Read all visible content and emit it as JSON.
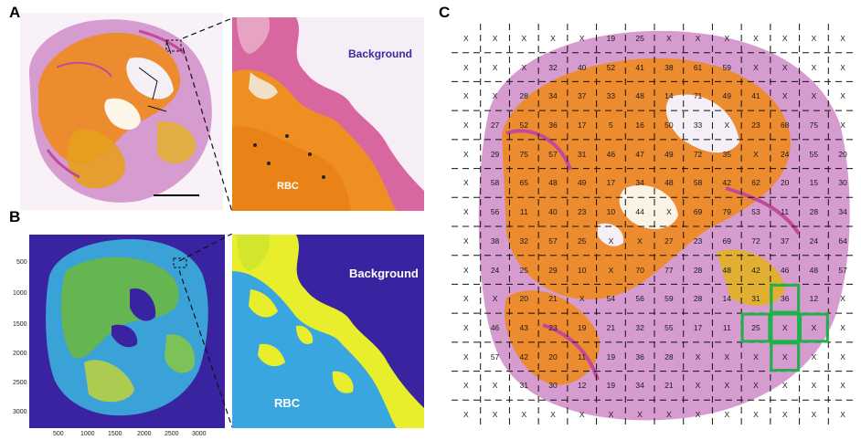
{
  "panels": {
    "a": {
      "label": "A",
      "zoom_label": "Background",
      "rbc_label": "RBC"
    },
    "b": {
      "label": "B",
      "zoom_label": "Background",
      "rbc_label": "RBC",
      "y_ticks": [
        "500",
        "1000",
        "1500",
        "2000",
        "2500",
        "3000"
      ],
      "x_ticks": [
        "500",
        "1000",
        "1500",
        "2000",
        "2500",
        "3000"
      ]
    },
    "c": {
      "label": "C",
      "grid": [
        [
          "X",
          "X",
          "X",
          "X",
          "X",
          "19",
          "25",
          "X",
          "X",
          "X",
          "X",
          "X",
          "X",
          "X"
        ],
        [
          "X",
          "X",
          "X",
          "32",
          "40",
          "52",
          "41",
          "38",
          "61",
          "59",
          "X",
          "X",
          "X",
          "X"
        ],
        [
          "X",
          "X",
          "28",
          "34",
          "37",
          "33",
          "48",
          "14",
          "71",
          "49",
          "41",
          "X",
          "X",
          "X"
        ],
        [
          "X",
          "27",
          "52",
          "36",
          "17",
          "5",
          "16",
          "50",
          "33",
          "X",
          "23",
          "68",
          "75",
          "X"
        ],
        [
          "X",
          "29",
          "75",
          "57",
          "31",
          "46",
          "47",
          "49",
          "72",
          "35",
          "X",
          "24",
          "55",
          "20"
        ],
        [
          "X",
          "58",
          "65",
          "48",
          "49",
          "17",
          "34",
          "48",
          "58",
          "42",
          "62",
          "20",
          "15",
          "30"
        ],
        [
          "X",
          "56",
          "11",
          "40",
          "23",
          "10",
          "44",
          "X",
          "69",
          "79",
          "53",
          "11",
          "28",
          "34"
        ],
        [
          "X",
          "38",
          "32",
          "57",
          "25",
          "X",
          "X",
          "27",
          "23",
          "69",
          "72",
          "37",
          "24",
          "64"
        ],
        [
          "X",
          "24",
          "25",
          "29",
          "10",
          "X",
          "70",
          "77",
          "28",
          "48",
          "42",
          "46",
          "48",
          "57"
        ],
        [
          "X",
          "X",
          "20",
          "21",
          "X",
          "54",
          "56",
          "59",
          "28",
          "14",
          "31",
          "36",
          "12",
          "X"
        ],
        [
          "X",
          "46",
          "43",
          "23",
          "19",
          "21",
          "32",
          "55",
          "17",
          "11",
          "25",
          "X",
          "X",
          "X"
        ],
        [
          "X",
          "57",
          "42",
          "20",
          "11",
          "19",
          "36",
          "28",
          "X",
          "X",
          "X",
          "X",
          "X",
          "X"
        ],
        [
          "X",
          "X",
          "31",
          "30",
          "12",
          "19",
          "34",
          "21",
          "X",
          "X",
          "X",
          "X",
          "X",
          "X"
        ],
        [
          "X",
          "X",
          "X",
          "X",
          "X",
          "X",
          "X",
          "X",
          "X",
          "X",
          "X",
          "X",
          "X",
          "X"
        ]
      ],
      "highlight_cells": [
        [
          9,
          11
        ],
        [
          10,
          10
        ],
        [
          10,
          11
        ],
        [
          10,
          12
        ],
        [
          11,
          11
        ]
      ]
    }
  },
  "colors": {
    "stain_orange": "#ee8a1e",
    "stain_magenta": "#c65aa8",
    "stain_pink": "#dca2d4",
    "stain_yellow": "#e3b21c",
    "map_background": "#3a23a0",
    "map_cyan": "#38a8e0",
    "map_yellow": "#eaf12a",
    "map_green": "#3f9d7a",
    "highlight_green": "#1db24a",
    "background_text_a": "#3a2a9a"
  }
}
